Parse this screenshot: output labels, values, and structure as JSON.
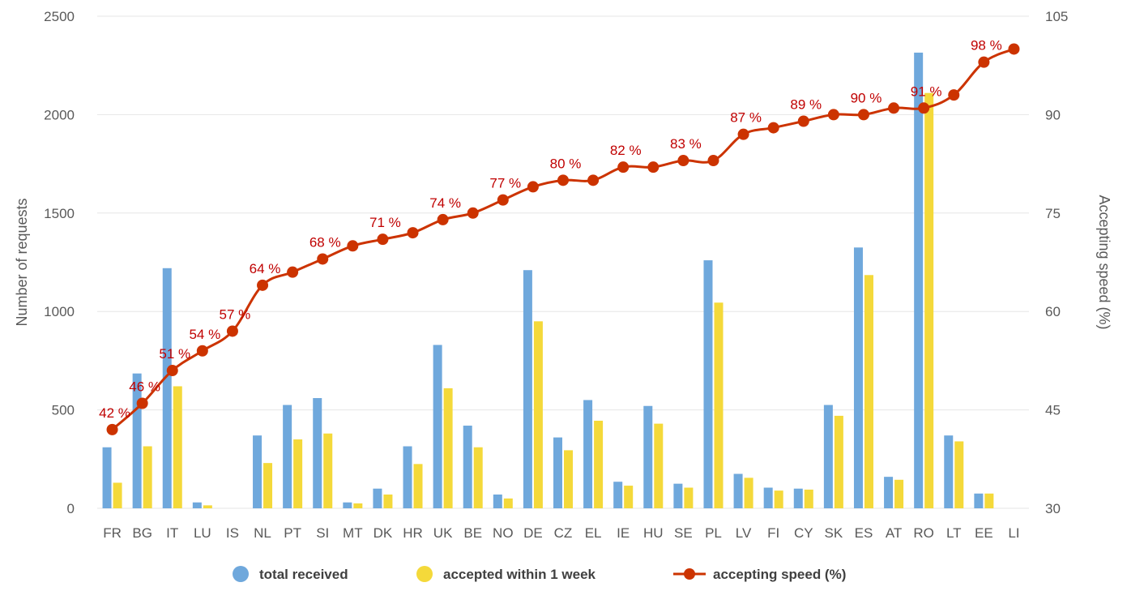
{
  "chart_data": {
    "type": "bar",
    "categories": [
      "FR",
      "BG",
      "IT",
      "LU",
      "IS",
      "NL",
      "PT",
      "SI",
      "MT",
      "DK",
      "HR",
      "UK",
      "BE",
      "NO",
      "DE",
      "CZ",
      "EL",
      "IE",
      "HU",
      "SE",
      "PL",
      "LV",
      "FI",
      "CY",
      "SK",
      "ES",
      "AT",
      "RO",
      "LT",
      "EE",
      "LI"
    ],
    "series": [
      {
        "name": "total received",
        "type": "bar",
        "axis": "left",
        "values": [
          310,
          685,
          1220,
          30,
          0,
          370,
          525,
          560,
          30,
          100,
          315,
          830,
          420,
          70,
          1210,
          360,
          550,
          135,
          520,
          125,
          1260,
          175,
          105,
          100,
          525,
          1325,
          160,
          2315,
          370,
          75,
          0
        ]
      },
      {
        "name": "accepted within 1 week",
        "type": "bar",
        "axis": "left",
        "values": [
          130,
          315,
          620,
          15,
          0,
          230,
          350,
          380,
          25,
          70,
          225,
          610,
          310,
          50,
          950,
          295,
          445,
          115,
          430,
          105,
          1045,
          155,
          90,
          95,
          470,
          1185,
          145,
          2110,
          340,
          75,
          0
        ]
      },
      {
        "name": "accepting speed (%)",
        "type": "line",
        "axis": "right",
        "values": [
          42,
          46,
          51,
          54,
          57,
          64,
          66,
          68,
          70,
          71,
          72,
          74,
          75,
          77,
          79,
          80,
          80,
          82,
          82,
          83,
          83,
          87,
          88,
          89,
          90,
          90,
          91,
          91,
          93,
          98,
          100
        ]
      }
    ],
    "data_labels": [
      {
        "index": 0,
        "text": "42 %"
      },
      {
        "index": 1,
        "text": "46 %"
      },
      {
        "index": 2,
        "text": "51 %"
      },
      {
        "index": 3,
        "text": "54 %"
      },
      {
        "index": 4,
        "text": "57 %"
      },
      {
        "index": 5,
        "text": "64 %"
      },
      {
        "index": 7,
        "text": "68 %"
      },
      {
        "index": 9,
        "text": "71 %"
      },
      {
        "index": 11,
        "text": "74 %"
      },
      {
        "index": 13,
        "text": "77 %"
      },
      {
        "index": 15,
        "text": "80 %"
      },
      {
        "index": 17,
        "text": "82 %"
      },
      {
        "index": 19,
        "text": "83 %"
      },
      {
        "index": 21,
        "text": "87 %"
      },
      {
        "index": 23,
        "text": "89 %"
      },
      {
        "index": 25,
        "text": "90 %"
      },
      {
        "index": 27,
        "text": "91 %"
      },
      {
        "index": 29,
        "text": "98 %"
      }
    ],
    "ylabel": "Number of requests",
    "y2label": "Accepting speed (%)",
    "ylim": [
      0,
      2500
    ],
    "yticks": [
      0,
      500,
      1000,
      1500,
      2000,
      2500
    ],
    "y2lim": [
      30,
      105
    ],
    "y2ticks": [
      30,
      45,
      60,
      75,
      90,
      105
    ],
    "grid": true,
    "legend_position": "bottom",
    "colors": {
      "total": "#6fa8dc",
      "accepted": "#f4d93a",
      "speed": "#cc3300",
      "label": "#c00000",
      "grid": "#e6e6e6",
      "text": "#595959"
    }
  }
}
